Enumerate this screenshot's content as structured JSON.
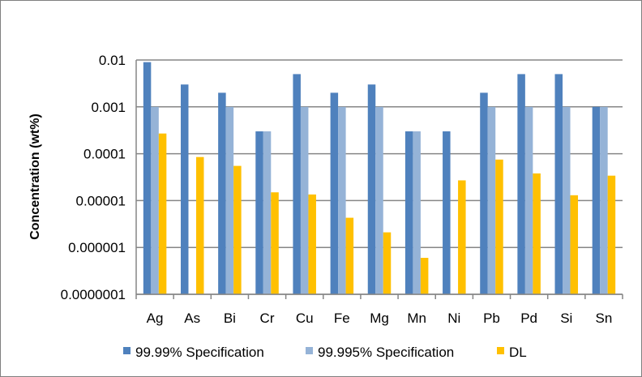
{
  "chart_data": {
    "type": "bar",
    "title": "",
    "xlabel": "",
    "ylabel": "Concentration (wt%)",
    "yscale": "log",
    "ylim": [
      1e-07,
      0.01
    ],
    "yticks": [
      1e-07,
      1e-06,
      1e-05,
      0.0001,
      0.001,
      0.01
    ],
    "ytick_labels": [
      "0.0000001",
      "0.000001",
      "0.00001",
      "0.0001",
      "0.001",
      "0.01"
    ],
    "grid": true,
    "legend_position": "bottom",
    "categories": [
      "Ag",
      "As",
      "Bi",
      "Cr",
      "Cu",
      "Fe",
      "Mg",
      "Mn",
      "Ni",
      "Pb",
      "Pd",
      "Si",
      "Sn"
    ],
    "series": [
      {
        "name": "99.99% Specification",
        "color": "#4f81bd",
        "values": [
          0.009,
          0.003,
          0.002,
          0.0003,
          0.005,
          0.002,
          0.003,
          0.0003,
          0.0003,
          0.002,
          0.005,
          0.005,
          0.001
        ]
      },
      {
        "name": "99.995% Specification",
        "color": "#95b3d7",
        "values": [
          0.001,
          null,
          0.001,
          0.0003,
          0.001,
          0.001,
          0.001,
          0.0003,
          null,
          0.001,
          0.001,
          0.001,
          0.001
        ]
      },
      {
        "name": "DL",
        "color": "#ffc000",
        "values": [
          0.00027,
          8.5e-05,
          5.5e-05,
          1.5e-05,
          1.35e-05,
          4.3e-06,
          2.1e-06,
          6e-07,
          2.7e-05,
          7.5e-05,
          3.8e-05,
          1.3e-05,
          3.4e-05
        ]
      }
    ]
  }
}
